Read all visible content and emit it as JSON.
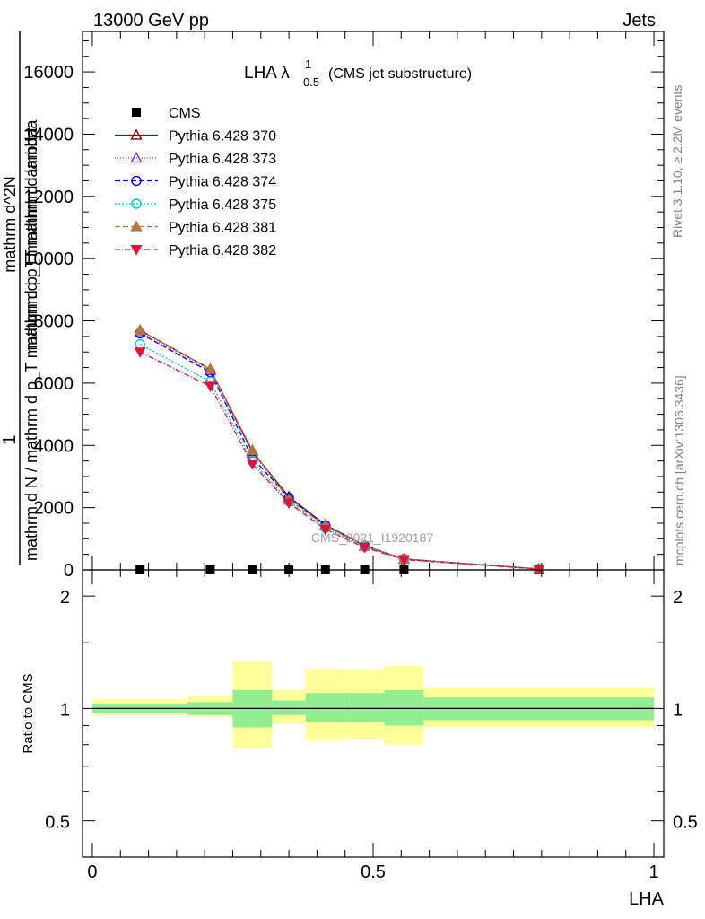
{
  "header": {
    "left": "13000 GeV pp",
    "right": "Jets"
  },
  "side_labels": {
    "rivet": "Rivet 3.1.10, ≥ 2.2M events",
    "mcplots": "mcplots.cern.ch [arXiv:1306.3436]"
  },
  "watermark": "CMS_2021_I1920187",
  "chart_data": [
    {
      "type": "line",
      "title_main": "LHA λ",
      "title_sup": "1",
      "title_sub": "0.5",
      "title_suffix": "(CMS jet substructure)",
      "ylabel_num": "1",
      "ylabel_den": "mathrm d N / mathrm d p_T mathrm d p_T mathrm d lambda",
      "ylabel_top": "mathrm d^2N",
      "ylabel_text": "mathrm d p_T mathrm d lambda",
      "xlabel": "LHA",
      "xlim": [
        0,
        1
      ],
      "ylim": [
        0,
        17300
      ],
      "yticks": [
        0,
        2000,
        4000,
        6000,
        8000,
        10000,
        12000,
        14000,
        16000
      ],
      "ytick_labels": [
        "0",
        "2000",
        "4000",
        "6000",
        "8000",
        "10000",
        "12000",
        "14000",
        "16000"
      ],
      "x": [
        0.085,
        0.21,
        0.285,
        0.35,
        0.415,
        0.485,
        0.555,
        0.795
      ],
      "legend_position": "top-left",
      "series": [
        {
          "name": "CMS",
          "color": "#000000",
          "marker": "square",
          "dash": "none",
          "values": [
            0.5,
            0.8,
            0.7,
            0.6,
            0.5,
            0.4,
            0.2,
            0.05
          ]
        },
        {
          "name": "Pythia 6.428 370",
          "color": "#8b0000",
          "marker": "triangle-open",
          "dash": "solid",
          "values": [
            7700,
            6450,
            3800,
            2350,
            1450,
            780,
            350,
            30
          ]
        },
        {
          "name": "Pythia 6.428 373",
          "color": "#8a2be2",
          "marker": "triangle-open",
          "dash": "1,2",
          "values": [
            7650,
            6400,
            3750,
            2300,
            1420,
            760,
            345,
            30
          ]
        },
        {
          "name": "Pythia 6.428 374",
          "color": "#0000ff",
          "marker": "circle-open",
          "dash": "6,3",
          "values": [
            7600,
            6350,
            3600,
            2320,
            1430,
            770,
            350,
            30
          ]
        },
        {
          "name": "Pythia 6.428 375",
          "color": "#00c8c8",
          "marker": "circle-open",
          "dash": "2,2",
          "values": [
            7250,
            6050,
            3500,
            2200,
            1350,
            740,
            340,
            28
          ]
        },
        {
          "name": "Pythia 6.428 381",
          "color": "#b07840",
          "marker": "triangle-filled",
          "dash": "6,3",
          "values": [
            7700,
            6450,
            3850,
            2250,
            1420,
            770,
            350,
            30
          ]
        },
        {
          "name": "Pythia 6.428 382",
          "color": "#dc143c",
          "marker": "triangle-down-filled",
          "dash": "6,2,1,2",
          "values": [
            7000,
            5900,
            3400,
            2150,
            1300,
            720,
            330,
            27
          ]
        }
      ]
    },
    {
      "type": "area",
      "ylabel": "Ratio to CMS",
      "xlabel": "LHA",
      "xlim": [
        0,
        1
      ],
      "ylim": [
        0.4,
        2.35
      ],
      "log_y": true,
      "yticks": [
        0.5,
        1,
        2
      ],
      "ytick_labels": [
        "0.5",
        "1",
        "2"
      ],
      "xticks": [
        0,
        0.5,
        1
      ],
      "xtick_labels": [
        "0",
        "0.5",
        "1"
      ],
      "bins": [
        0,
        0.17,
        0.25,
        0.32,
        0.38,
        0.45,
        0.52,
        0.59,
        1.0
      ],
      "band_inner_lo": [
        0.97,
        0.96,
        0.89,
        0.96,
        0.92,
        0.92,
        0.9,
        0.93
      ],
      "band_inner_hi": [
        1.03,
        1.04,
        1.12,
        1.05,
        1.1,
        1.1,
        1.12,
        1.07
      ],
      "band_outer_lo": [
        0.96,
        0.95,
        0.78,
        0.91,
        0.82,
        0.83,
        0.8,
        0.89
      ],
      "band_outer_hi": [
        1.06,
        1.08,
        1.34,
        1.12,
        1.28,
        1.27,
        1.3,
        1.14
      ],
      "inner_color": "#90ee90",
      "outer_color": "#ffff99"
    }
  ]
}
